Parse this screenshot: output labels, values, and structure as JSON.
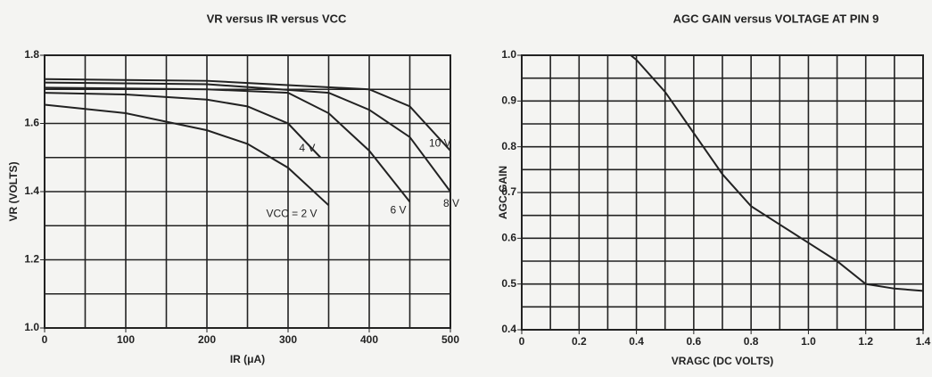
{
  "chart_data": [
    {
      "type": "line",
      "title": "VR versus IR versus VCC",
      "xlabel": "IR (μA)",
      "ylabel": "VR (VOLTS)",
      "xlim": [
        0,
        500
      ],
      "ylim": [
        1.0,
        1.8
      ],
      "xticks": [
        0,
        100,
        200,
        300,
        400,
        500
      ],
      "yticks": [
        {
          "value": 1.0,
          "label": "1.0"
        },
        1.2,
        1.4,
        1.6,
        1.8
      ],
      "xgrid": [
        50,
        100,
        150,
        200,
        250,
        300,
        350,
        400,
        450
      ],
      "ygrid": [
        1.1,
        1.2,
        1.3,
        1.4,
        1.5,
        1.6,
        1.7
      ],
      "series": [
        {
          "name": "VCC = 2 V",
          "color": "#222",
          "x": [
            0,
            100,
            200,
            250,
            300,
            350
          ],
          "values": [
            1.655,
            1.63,
            1.58,
            1.54,
            1.47,
            1.36
          ]
        },
        {
          "name": "4 V",
          "color": "#222",
          "x": [
            0,
            100,
            200,
            250,
            300,
            340
          ],
          "values": [
            1.69,
            1.685,
            1.67,
            1.65,
            1.6,
            1.5
          ]
        },
        {
          "name": "6 V",
          "color": "#222",
          "x": [
            0,
            200,
            300,
            350,
            400,
            450
          ],
          "values": [
            1.705,
            1.7,
            1.69,
            1.63,
            1.52,
            1.37
          ]
        },
        {
          "name": "8 V",
          "color": "#222",
          "x": [
            0,
            200,
            350,
            400,
            450,
            500
          ],
          "values": [
            1.72,
            1.715,
            1.69,
            1.64,
            1.56,
            1.4
          ]
        },
        {
          "name": "10 V",
          "color": "#222",
          "x": [
            0,
            200,
            400,
            450,
            500
          ],
          "values": [
            1.73,
            1.725,
            1.7,
            1.65,
            1.52
          ]
        }
      ]
    },
    {
      "type": "line",
      "title": "AGC GAIN versus VOLTAGE AT PIN 9",
      "xlabel": "VRAGC (DC VOLTS)",
      "ylabel": "AGC GAIN",
      "xlim": [
        0,
        1.4
      ],
      "ylim": [
        0.4,
        1.0
      ],
      "xticks": [
        0,
        0.2,
        0.4,
        0.6,
        0.8,
        {
          "value": 1.0,
          "label": "1.0"
        },
        1.2,
        1.4
      ],
      "yticks": [
        0.4,
        0.5,
        0.6,
        0.7,
        0.8,
        0.9,
        {
          "value": 1.0,
          "label": "1.0"
        }
      ],
      "xgrid": [
        0.1,
        0.2,
        0.3,
        0.4,
        0.5,
        0.6,
        0.7,
        0.8,
        0.9,
        1.0,
        1.1,
        1.2,
        1.3
      ],
      "ygrid": [
        0.45,
        0.5,
        0.55,
        0.6,
        0.65,
        0.7,
        0.75,
        0.8,
        0.85,
        0.9,
        0.95
      ],
      "series": [
        {
          "name": "AGC GAIN",
          "color": "#222",
          "x": [
            0,
            0.38,
            0.4,
            0.5,
            0.6,
            0.7,
            0.8,
            0.9,
            1.0,
            1.1,
            1.2,
            1.3,
            1.4
          ],
          "values": [
            1.0,
            1.0,
            0.99,
            0.92,
            0.83,
            0.74,
            0.67,
            0.63,
            0.59,
            0.55,
            0.5,
            0.49,
            0.485
          ]
        }
      ]
    }
  ]
}
